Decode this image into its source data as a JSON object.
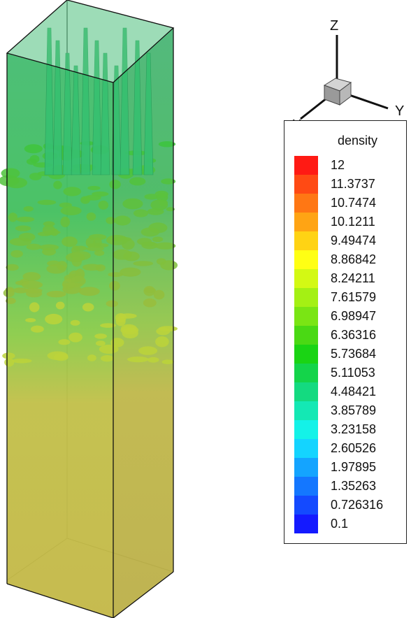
{
  "axes": {
    "z": "Z",
    "y": "Y",
    "x": "X"
  },
  "legend": {
    "title": "density",
    "levels": [
      {
        "label": "12",
        "color": "#ff1a14"
      },
      {
        "label": "11.3737",
        "color": "#ff4a14"
      },
      {
        "label": "10.7474",
        "color": "#ff7714"
      },
      {
        "label": "10.1211",
        "color": "#ffa414"
      },
      {
        "label": "9.49474",
        "color": "#ffd314"
      },
      {
        "label": "8.86842",
        "color": "#ffff14"
      },
      {
        "label": "8.24211",
        "color": "#d3f914"
      },
      {
        "label": "7.61579",
        "color": "#a4f014"
      },
      {
        "label": "6.98947",
        "color": "#7ae514"
      },
      {
        "label": "6.36316",
        "color": "#4ad914"
      },
      {
        "label": "5.73684",
        "color": "#1ad414"
      },
      {
        "label": "5.11053",
        "color": "#14d44a"
      },
      {
        "label": "4.48421",
        "color": "#14da80"
      },
      {
        "label": "3.85789",
        "color": "#14e8b4"
      },
      {
        "label": "3.23158",
        "color": "#14f2e8"
      },
      {
        "label": "2.60526",
        "color": "#14d4ff"
      },
      {
        "label": "1.97895",
        "color": "#14a4ff"
      },
      {
        "label": "1.35263",
        "color": "#1477ff"
      },
      {
        "label": "0.726316",
        "color": "#144aff"
      },
      {
        "label": "0.1",
        "color": "#141aff"
      }
    ]
  },
  "colors": {
    "upper_fluid": "#4cc06c",
    "lower_fluid": "#c4bc4c",
    "mixing_green": "#3fc84a",
    "mixing_yellow": "#bcd43a",
    "spike": "#36c070",
    "edge": "#111111"
  }
}
